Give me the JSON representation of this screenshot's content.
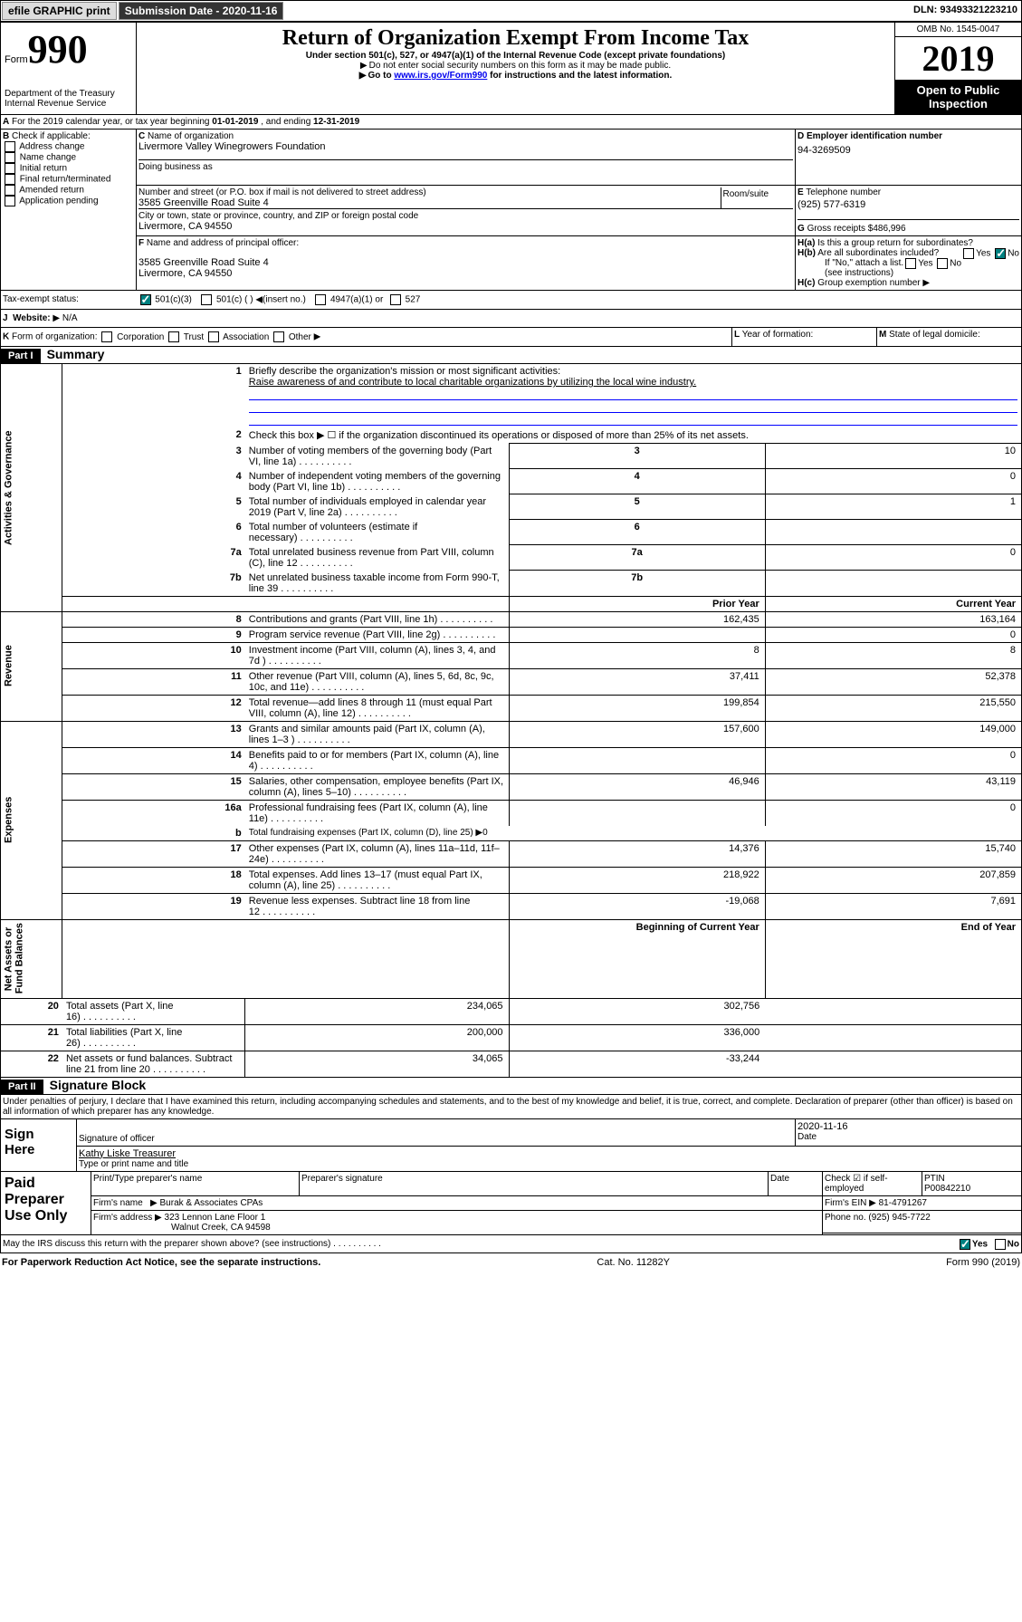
{
  "header": {
    "efile": "efile GRAPHIC print",
    "subdate_label": "Submission Date - ",
    "subdate": "2020-11-16",
    "dln_label": "DLN: ",
    "dln": "93493321223210"
  },
  "formhead": {
    "form": "Form",
    "num": "990",
    "dept": "Department of the Treasury\nInternal Revenue Service",
    "title": "Return of Organization Exempt From Income Tax",
    "sub1": "Under section 501(c), 527, or 4947(a)(1) of the Internal Revenue Code (except private foundations)",
    "sub2": "Do not enter social security numbers on this form as it may be made public.",
    "sub3_a": "Go to ",
    "sub3_link": "www.irs.gov/Form990",
    "sub3_b": " for instructions and the latest information.",
    "omb": "OMB No. 1545-0047",
    "year": "2019",
    "open": "Open to Public\nInspection"
  },
  "A": {
    "text": "For the 2019 calendar year, or tax year beginning ",
    "begin": "01-01-2019",
    "mid": " , and ending ",
    "end": "12-31-2019"
  },
  "B": {
    "label": "Check if applicable:",
    "opts": [
      "Address change",
      "Name change",
      "Initial return",
      "Final return/terminated",
      "Amended return",
      "Application pending"
    ]
  },
  "C": {
    "name_label": "Name of organization",
    "name": "Livermore Valley Winegrowers Foundation",
    "dba": "Doing business as",
    "addr_label": "Number and street (or P.O. box if mail is not delivered to street address)",
    "room": "Room/suite",
    "addr": "3585 Greenville Road Suite 4",
    "city_label": "City or town, state or province, country, and ZIP or foreign postal code",
    "city": "Livermore, CA  94550"
  },
  "D": {
    "label": "Employer identification number",
    "val": "94-3269509"
  },
  "E": {
    "label": "Telephone number",
    "val": "(925) 577-6319"
  },
  "G": {
    "label": "Gross receipts $",
    "val": "486,996"
  },
  "F": {
    "label": "Name and address of principal officer:",
    "addr1": "3585 Greenville Road Suite 4",
    "addr2": "Livermore, CA  94550"
  },
  "H": {
    "a": "Is this a group return for subordinates?",
    "b": "Are all subordinates included?",
    "c": "Group exemption number",
    "ifno": "If \"No,\" attach a list. (see instructions)",
    "yes": "Yes",
    "no": "No"
  },
  "tax": {
    "label": "Tax-exempt status:",
    "c3": "501(c)(3)",
    "c": "501(c) (  )",
    "ins": "(insert no.)",
    "a": "4947(a)(1) or",
    "s": "527"
  },
  "J": {
    "label": "Website:",
    "val": "N/A"
  },
  "K": {
    "label": "Form of organization:",
    "opts": [
      "Corporation",
      "Trust",
      "Association",
      "Other"
    ]
  },
  "L": {
    "label": "Year of formation:"
  },
  "M": {
    "label": "State of legal domicile:"
  },
  "partI": {
    "bar": "Part I",
    "title": "Summary"
  },
  "l1": {
    "label": "Briefly describe the organization's mission or most significant activities:",
    "val": "Raise awareness of and contribute to local charitable organizations by utilizing the local wine industry."
  },
  "l2": "Check this box ▶ ☐  if the organization discontinued its operations or disposed of more than 25% of its net assets.",
  "lines": {
    "3": {
      "t": "Number of voting members of the governing body (Part VI, line 1a)",
      "v": "10"
    },
    "4": {
      "t": "Number of independent voting members of the governing body (Part VI, line 1b)",
      "v": "0"
    },
    "5": {
      "t": "Total number of individuals employed in calendar year 2019 (Part V, line 2a)",
      "v": "1"
    },
    "6": {
      "t": "Total number of volunteers (estimate if necessary)",
      "v": ""
    },
    "7a": {
      "t": "Total unrelated business revenue from Part VIII, column (C), line 12",
      "v": "0"
    },
    "7b": {
      "t": "Net unrelated business taxable income from Form 990-T, line 39",
      "v": ""
    }
  },
  "prior": "Prior Year",
  "curr": "Current Year",
  "begcy": "Beginning of Current Year",
  "eoy": "End of Year",
  "sections": {
    "gov": "Activities & Governance",
    "rev": "Revenue",
    "exp": "Expenses",
    "net": "Net Assets or\nFund Balances"
  },
  "rev": [
    {
      "n": "8",
      "t": "Contributions and grants (Part VIII, line 1h)",
      "p": "162,435",
      "c": "163,164"
    },
    {
      "n": "9",
      "t": "Program service revenue (Part VIII, line 2g)",
      "p": "",
      "c": "0"
    },
    {
      "n": "10",
      "t": "Investment income (Part VIII, column (A), lines 3, 4, and 7d )",
      "p": "8",
      "c": "8"
    },
    {
      "n": "11",
      "t": "Other revenue (Part VIII, column (A), lines 5, 6d, 8c, 9c, 10c, and 11e)",
      "p": "37,411",
      "c": "52,378"
    },
    {
      "n": "12",
      "t": "Total revenue—add lines 8 through 11 (must equal Part VIII, column (A), line 12)",
      "p": "199,854",
      "c": "215,550"
    }
  ],
  "exp": [
    {
      "n": "13",
      "t": "Grants and similar amounts paid (Part IX, column (A), lines 1–3 )",
      "p": "157,600",
      "c": "149,000"
    },
    {
      "n": "14",
      "t": "Benefits paid to or for members (Part IX, column (A), line 4)",
      "p": "",
      "c": "0"
    },
    {
      "n": "15",
      "t": "Salaries, other compensation, employee benefits (Part IX, column (A), lines 5–10)",
      "p": "46,946",
      "c": "43,119"
    },
    {
      "n": "16a",
      "t": "Professional fundraising fees (Part IX, column (A), line 11e)",
      "p": "",
      "c": "0"
    },
    {
      "n": "b",
      "t": "Total fundraising expenses (Part IX, column (D), line 25) ▶0",
      "single": true
    },
    {
      "n": "17",
      "t": "Other expenses (Part IX, column (A), lines 11a–11d, 11f–24e)",
      "p": "14,376",
      "c": "15,740"
    },
    {
      "n": "18",
      "t": "Total expenses. Add lines 13–17 (must equal Part IX, column (A), line 25)",
      "p": "218,922",
      "c": "207,859"
    },
    {
      "n": "19",
      "t": "Revenue less expenses. Subtract line 18 from line 12",
      "p": "-19,068",
      "c": "7,691"
    }
  ],
  "net": [
    {
      "n": "20",
      "t": "Total assets (Part X, line 16)",
      "p": "234,065",
      "c": "302,756"
    },
    {
      "n": "21",
      "t": "Total liabilities (Part X, line 26)",
      "p": "200,000",
      "c": "336,000"
    },
    {
      "n": "22",
      "t": "Net assets or fund balances. Subtract line 21 from line 20",
      "p": "34,065",
      "c": "-33,244"
    }
  ],
  "partII": {
    "bar": "Part II",
    "title": "Signature Block",
    "decl": "Under penalties of perjury, I declare that I have examined this return, including accompanying schedules and statements, and to the best of my knowledge and belief, it is true, correct, and complete. Declaration of preparer (other than officer) is based on all information of which preparer has any knowledge."
  },
  "sign": {
    "here": "Sign\nHere",
    "sig": "Signature of officer",
    "date_label": "Date",
    "date": "2020-11-16",
    "name": "Kathy Liske  Treasurer",
    "name_label": "Type or print name and title"
  },
  "paid": {
    "title": "Paid\nPreparer\nUse Only",
    "pn_label": "Print/Type preparer's name",
    "sig_label": "Preparer's signature",
    "date": "Date",
    "self": "Check ☑ if self-employed",
    "ptin_label": "PTIN",
    "ptin": "P00842210",
    "firm_label": "Firm's name",
    "firm": "Burak & Associates CPAs",
    "ein_label": "Firm's EIN ▶",
    "ein": "81-4791267",
    "addr_label": "Firm's address ▶",
    "addr1": "323 Lennon Lane Floor 1",
    "addr2": "Walnut Creek, CA  94598",
    "phone_label": "Phone no.",
    "phone": "(925) 945-7722"
  },
  "irs": {
    "q": "May the IRS discuss this return with the preparer shown above? (see instructions)",
    "yes": "Yes",
    "no": "No"
  },
  "footer": {
    "pra": "For Paperwork Reduction Act Notice, see the separate instructions.",
    "cat": "Cat. No. 11282Y",
    "form": "Form 990 (2019)"
  }
}
